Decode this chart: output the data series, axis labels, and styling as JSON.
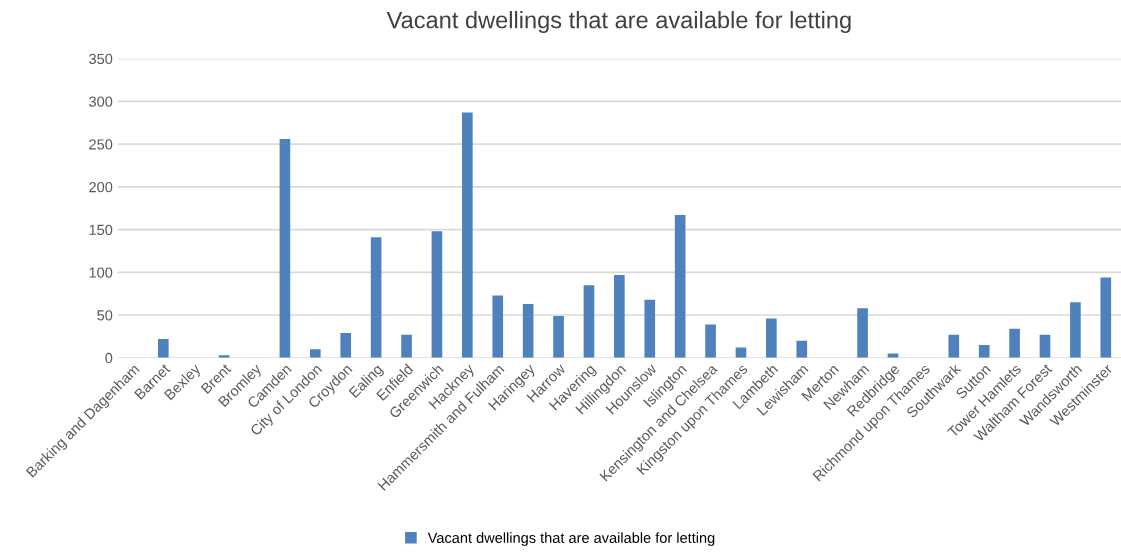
{
  "chart_data": {
    "type": "bar",
    "title": "Vacant dwellings that are available for letting",
    "categories": [
      "Barking and Dagenham",
      "Barnet",
      "Bexley",
      "Brent",
      "Bromley",
      "Camden",
      "City of London",
      "Croydon",
      "Ealing",
      "Enfield",
      "Greenwich",
      "Hackney",
      "Hammersmith and Fulham",
      "Haringey",
      "Harrow",
      "Havering",
      "Hillingdon",
      "Hounslow",
      "Islington",
      "Kensington and Chelsea",
      "Kingston upon Thames",
      "Lambeth",
      "Lewisham",
      "Merton",
      "Newham",
      "Redbridge",
      "Richmond upon Thames",
      "Southwark",
      "Sutton",
      "Tower Hamlets",
      "Waltham Forest",
      "Wandsworth",
      "Westminster"
    ],
    "series": [
      {
        "name": "Vacant dwellings that are available for letting",
        "color": "#4f81bd",
        "values": [
          0,
          22,
          0,
          3,
          0,
          256,
          10,
          29,
          141,
          27,
          148,
          287,
          73,
          63,
          49,
          85,
          97,
          68,
          167,
          39,
          12,
          46,
          20,
          0,
          58,
          5,
          0,
          27,
          15,
          34,
          27,
          65,
          94
        ]
      }
    ],
    "ylim": [
      0,
      350
    ],
    "yticks": [
      0,
      50,
      100,
      150,
      200,
      250,
      300,
      350
    ],
    "grid": "y",
    "legend": "bottom"
  }
}
